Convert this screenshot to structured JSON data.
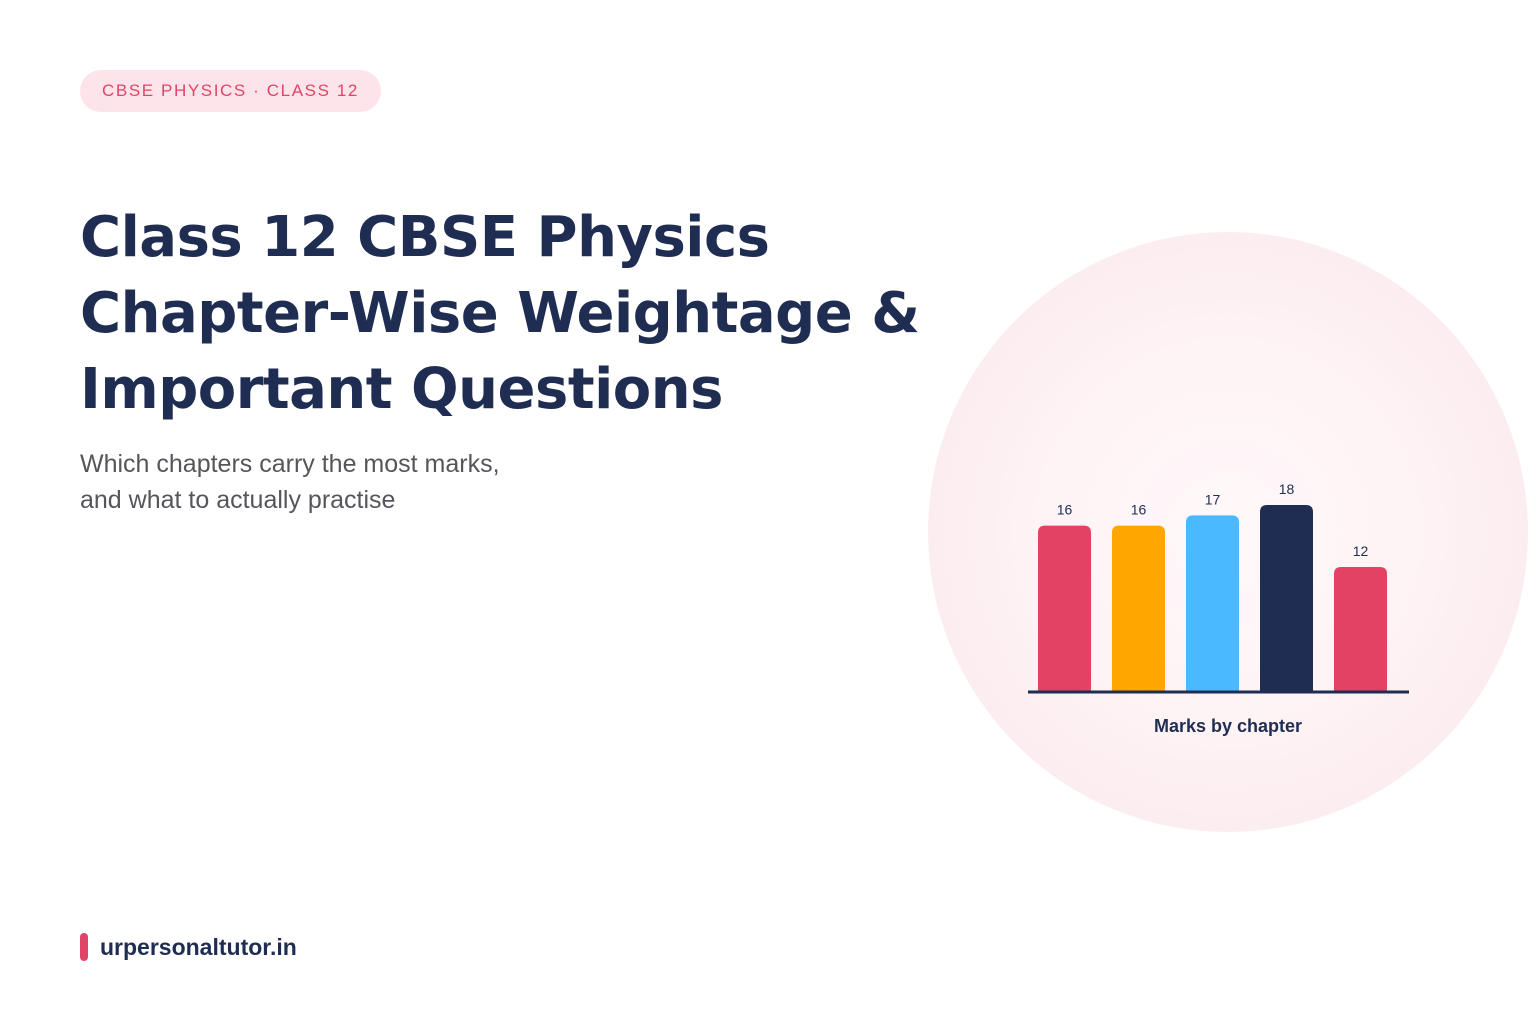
{
  "tag": "CBSE PHYSICS · CLASS 12",
  "title": {
    "line1": "Class 12 CBSE Physics",
    "line2": "Chapter-Wise Weightage &",
    "line3": "Important Questions"
  },
  "subtitle": {
    "line1": "Which chapters carry the most marks,",
    "line2": "and what to actually practise"
  },
  "brand": "urpersonaltutor.in",
  "colors": {
    "accent": "#e04467",
    "navy": "#1f2d52",
    "tag_bg": "#fde4ea",
    "circle_bg": "#fcedf0"
  },
  "chart_data": {
    "type": "bar",
    "values": [
      16,
      16,
      17,
      18,
      12
    ],
    "bar_colors": [
      "#e44264",
      "#ffa600",
      "#4bb9ff",
      "#1f2d52",
      "#e44264"
    ],
    "xlabel": "Marks by chapter",
    "ylim": [
      0,
      18
    ]
  }
}
